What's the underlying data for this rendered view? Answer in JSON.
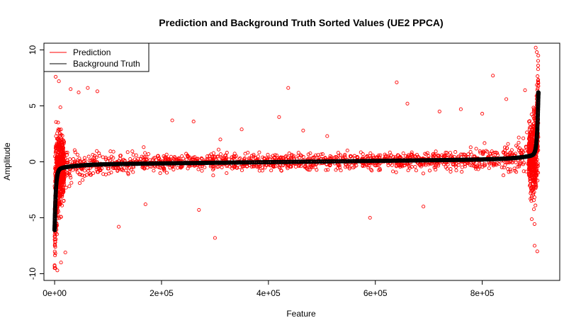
{
  "chart_data": {
    "type": "scatter",
    "title": "Prediction and Background Truth Sorted Values (UE2 PPCA)",
    "xlabel": "Feature",
    "ylabel": "Amplitude",
    "xlim": [
      -20000,
      945000
    ],
    "ylim": [
      -10.6,
      10.6
    ],
    "x_ticks": [
      0,
      200000,
      400000,
      600000,
      800000
    ],
    "x_tick_labels": [
      "0e+00",
      "2e+05",
      "4e+05",
      "6e+05",
      "8e+05"
    ],
    "y_ticks": [
      -10,
      -5,
      0,
      5,
      10
    ],
    "y_tick_labels": [
      "-10",
      "-5",
      "0",
      "5",
      "10"
    ],
    "n_features": 905000,
    "grid": false,
    "legend": {
      "position": "top-left",
      "entries": [
        {
          "label": "Prediction",
          "color": "#ff0000"
        },
        {
          "label": "Background Truth",
          "color": "#000000"
        }
      ]
    },
    "series": [
      {
        "name": "Prediction",
        "style": "points",
        "color": "#ff0000",
        "outliers": [
          [
            2000,
            7.6
          ],
          [
            5000,
            -9.7
          ],
          [
            8000,
            7.2
          ],
          [
            12000,
            -9.0
          ],
          [
            20000,
            -8.1
          ],
          [
            30000,
            6.5
          ],
          [
            45000,
            6.2
          ],
          [
            62000,
            6.6
          ],
          [
            80000,
            6.3
          ],
          [
            120000,
            -5.8
          ],
          [
            170000,
            -3.8
          ],
          [
            220000,
            3.7
          ],
          [
            260000,
            3.6
          ],
          [
            270000,
            -4.3
          ],
          [
            300000,
            -6.8
          ],
          [
            310000,
            2.0
          ],
          [
            350000,
            2.9
          ],
          [
            420000,
            4.0
          ],
          [
            437000,
            6.6
          ],
          [
            465000,
            2.8
          ],
          [
            510000,
            2.3
          ],
          [
            590000,
            -5.0
          ],
          [
            640000,
            7.1
          ],
          [
            660000,
            5.2
          ],
          [
            690000,
            -4.0
          ],
          [
            720000,
            4.5
          ],
          [
            760000,
            4.7
          ],
          [
            800000,
            4.3
          ],
          [
            820000,
            7.7
          ],
          [
            845000,
            5.6
          ],
          [
            880000,
            6.4
          ],
          [
            900000,
            10.2
          ],
          [
            902000,
            9.8
          ],
          [
            903000,
            -8.0
          ],
          [
            898000,
            -7.5
          ]
        ]
      },
      {
        "name": "Background Truth",
        "style": "points",
        "color": "#000000"
      }
    ]
  }
}
